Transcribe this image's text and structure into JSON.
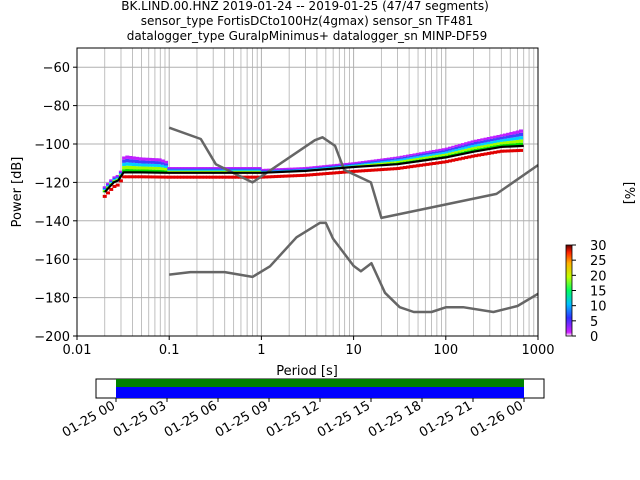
{
  "chart_data": {
    "type": "line",
    "title_lines": [
      "BK.LIND.00.HNZ   2019-01-24 -- 2019-01-25  (47/47 segments)",
      "sensor_type FortisDCto100Hz(4gmax) sensor_sn TF481",
      "datalogger_type GuralpMinimus+ datalogger_sn MINP-DF59"
    ],
    "xlabel": "Period [s]",
    "ylabel": "Power [dB]",
    "xscale": "log",
    "xlim": [
      0.01,
      1000
    ],
    "ylim": [
      -200,
      -50
    ],
    "grid": true,
    "x_ticks": [
      {
        "v": 0.01,
        "label": "0.01"
      },
      {
        "v": 0.1,
        "label": "0.1"
      },
      {
        "v": 1,
        "label": "1"
      },
      {
        "v": 10,
        "label": "10"
      },
      {
        "v": 100,
        "label": "100"
      },
      {
        "v": 1000,
        "label": "1000"
      }
    ],
    "y_ticks": [
      {
        "v": -60,
        "label": "−60"
      },
      {
        "v": -80,
        "label": "−80"
      },
      {
        "v": -100,
        "label": "−100"
      },
      {
        "v": -120,
        "label": "−120"
      },
      {
        "v": -140,
        "label": "−140"
      },
      {
        "v": -160,
        "label": "−160"
      },
      {
        "v": -180,
        "label": "−180"
      },
      {
        "v": -200,
        "label": "−200"
      }
    ],
    "series": [
      {
        "role": "noise-model-high",
        "color": "#666666",
        "x": [
          0.1,
          0.22,
          0.32,
          0.8,
          3.8,
          4.6,
          6.3,
          7.9,
          15.4,
          20,
          354.8,
          1000
        ],
        "y": [
          -91.5,
          -97.4,
          -110.5,
          -120,
          -98,
          -96.5,
          -101,
          -113.5,
          -120,
          -138.5,
          -126,
          -111
        ]
      },
      {
        "role": "noise-model-low",
        "color": "#666666",
        "x": [
          0.1,
          0.17,
          0.4,
          0.8,
          1.24,
          2.4,
          4.3,
          5,
          6,
          10,
          12,
          15.6,
          21.9,
          31.6,
          45,
          70,
          101,
          154,
          328,
          600,
          1000
        ],
        "y": [
          -168,
          -166.7,
          -166.7,
          -169.2,
          -163.7,
          -148.6,
          -141.1,
          -141.1,
          -149.4,
          -163.5,
          -166.3,
          -162.1,
          -177.5,
          -185,
          -187.5,
          -187.5,
          -185,
          -185,
          -187.5,
          -184.4,
          -178
        ]
      },
      {
        "role": "median",
        "color": "#000000",
        "x": [
          0.02,
          0.025,
          0.028,
          0.032,
          0.05,
          0.1,
          0.3,
          1,
          3,
          10,
          30,
          100,
          200,
          400,
          700
        ],
        "y": [
          -125,
          -120,
          -119,
          -114.8,
          -114.8,
          -115,
          -115,
          -115,
          -114,
          -112,
          -110.5,
          -107,
          -104,
          -101.5,
          -101
        ]
      },
      {
        "role": "mode-upper",
        "color": "#0000ff",
        "x": [
          0.03,
          0.035,
          0.05,
          0.08,
          0.095,
          0.1
        ],
        "y": [
          -107,
          -106,
          -107,
          -107.5,
          -109,
          -112
        ]
      },
      {
        "role": "upper-spread",
        "color": "#b000ff",
        "x": [
          1,
          3,
          10,
          30,
          100,
          200,
          400,
          600,
          700
        ],
        "y": [
          -113,
          -112,
          -109.5,
          -106.5,
          -102,
          -98,
          -95,
          -93,
          -92
        ]
      }
    ],
    "colorbar": {
      "label": "[%]",
      "min": 0,
      "max": 30,
      "ticks": [
        {
          "v": 0,
          "label": "0"
        },
        {
          "v": 5,
          "label": "5"
        },
        {
          "v": 10,
          "label": "10"
        },
        {
          "v": 15,
          "label": "15"
        },
        {
          "v": 20,
          "label": "20"
        },
        {
          "v": 25,
          "label": "25"
        },
        {
          "v": 30,
          "label": "30"
        }
      ]
    },
    "timeline": {
      "tick_labels": [
        "01-25 00",
        "01-25 03",
        "01-25 06",
        "01-25 09",
        "01-25 12",
        "01-25 15",
        "01-25 18",
        "01-25 21",
        "01-26 00"
      ],
      "coverage_color": "#008000",
      "data_color": "#0000ff"
    }
  }
}
